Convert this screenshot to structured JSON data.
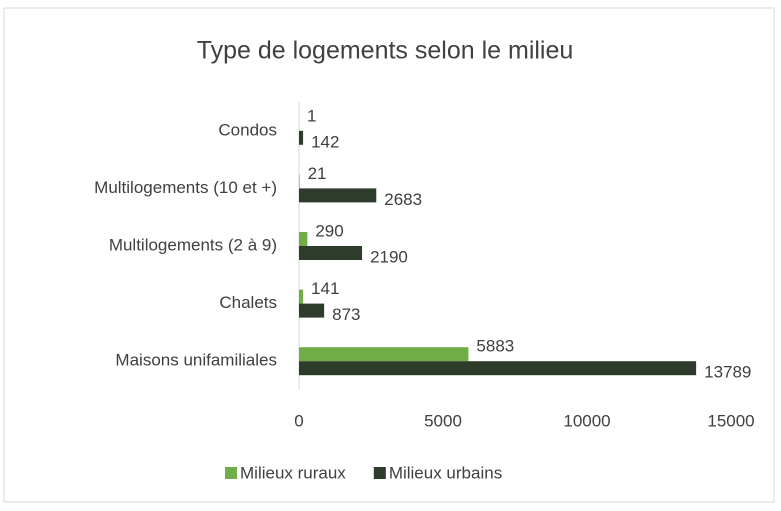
{
  "chart_data": {
    "type": "hbar",
    "title": "Type de logements selon le milieu",
    "categories": [
      "Condos",
      "Multilogements (10 et +)",
      "Multilogements (2 à 9)",
      "Chalets",
      "Maisons unifamiliales"
    ],
    "series": [
      {
        "name": "Milieux ruraux",
        "color": "#70ad47",
        "values": [
          1,
          21,
          290,
          141,
          5883
        ]
      },
      {
        "name": "Milieux urbains",
        "color": "#2e3d2b",
        "values": [
          142,
          2683,
          2190,
          873,
          13789
        ]
      }
    ],
    "xlim": [
      0,
      15000
    ],
    "xticks": [
      0,
      5000,
      10000,
      15000
    ],
    "grid": false,
    "legend": "bottom"
  }
}
